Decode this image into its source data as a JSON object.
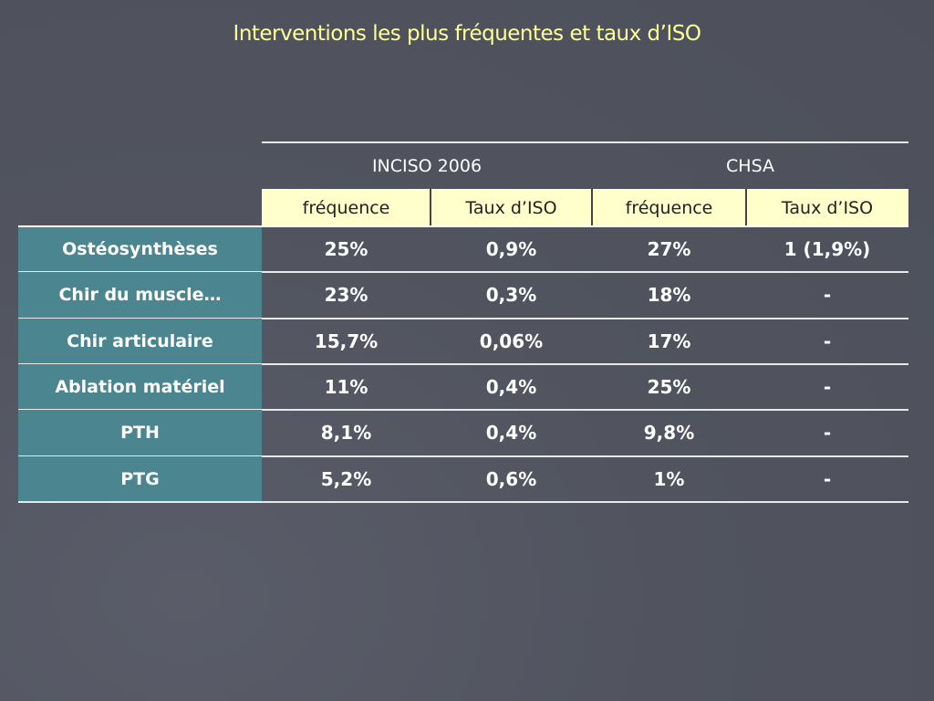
{
  "title": "Interventions les plus fréquentes et taux d’ISO",
  "table": {
    "groups": [
      "INCISO 2006",
      "CHSA"
    ],
    "columns": [
      "fréquence",
      "Taux d’ISO",
      "fréquence",
      "Taux d’ISO"
    ],
    "rows": [
      [
        "Ostéosynthèses",
        "25%",
        "0,9%",
        "27%",
        "1 (1,9%)"
      ],
      [
        "Chir du muscle…",
        "23%",
        "0,3%",
        "18%",
        "-"
      ],
      [
        "Chir articulaire",
        "15,7%",
        "0,06%",
        "17%",
        "-"
      ],
      [
        "Ablation matériel",
        "11%",
        "0,4%",
        "25%",
        "-"
      ],
      [
        "PTH",
        "8,1%",
        "0,4%",
        "9,8%",
        "-"
      ],
      [
        "PTG",
        "5,2%",
        "0,6%",
        "1%",
        "-"
      ]
    ]
  }
}
